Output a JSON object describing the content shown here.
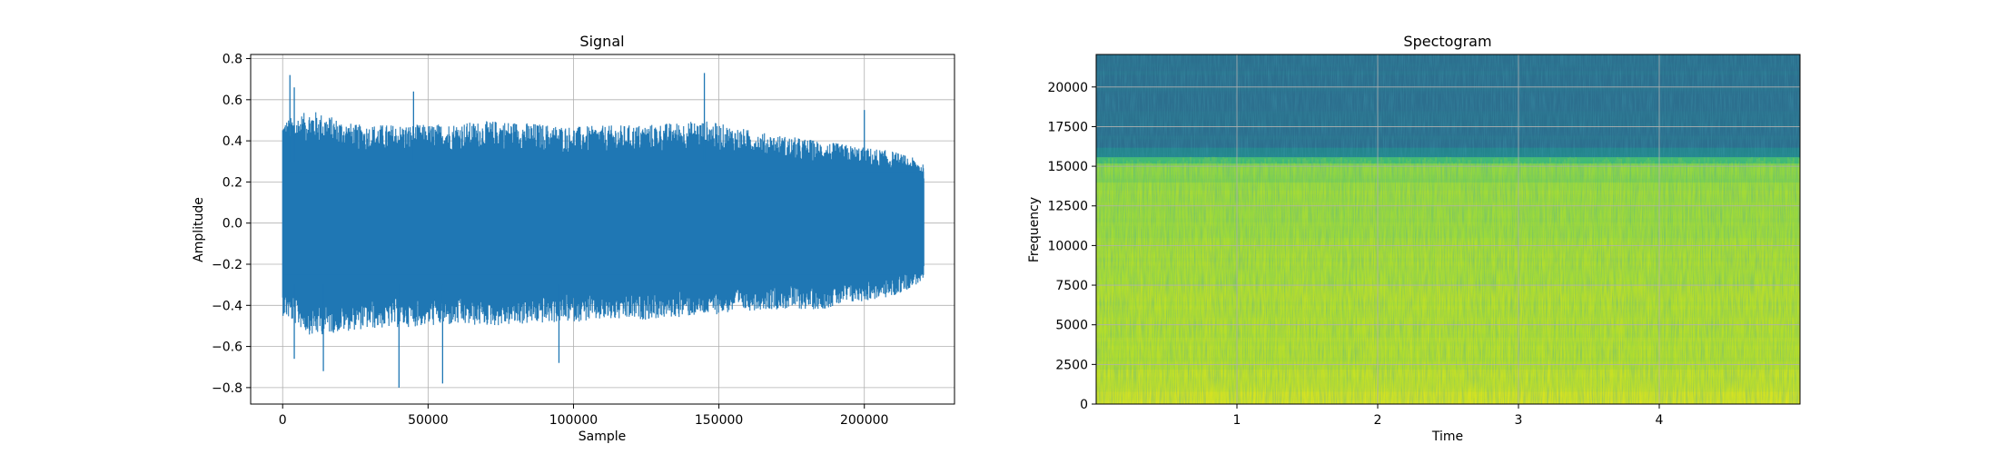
{
  "chart_data": [
    {
      "type": "line",
      "title": "Signal",
      "xlabel": "Sample",
      "ylabel": "Amplitude",
      "xlim": [
        -11000,
        231000
      ],
      "ylim": [
        -0.88,
        0.82
      ],
      "grid": true,
      "line_color": "#1f77b4",
      "x_ticks": [
        0,
        50000,
        100000,
        150000,
        200000
      ],
      "x_tick_labels": [
        "0",
        "50000",
        "100000",
        "150000",
        "200000"
      ],
      "y_ticks": [
        0.8,
        0.6,
        0.4,
        0.2,
        0.0,
        -0.2,
        -0.4,
        -0.6,
        -0.8
      ],
      "y_tick_labels": [
        "0.8",
        "0.6",
        "0.4",
        "0.2",
        "0.0",
        "−0.2",
        "−0.4",
        "−0.6",
        "−0.8"
      ],
      "n_samples": 220500,
      "envelope": {
        "x": [
          0,
          10000,
          25000,
          50000,
          75000,
          100000,
          125000,
          145000,
          165000,
          185000,
          200000,
          210000,
          220500
        ],
        "upper": [
          0.5,
          0.55,
          0.48,
          0.48,
          0.5,
          0.47,
          0.48,
          0.5,
          0.44,
          0.4,
          0.37,
          0.35,
          0.3
        ],
        "lower": [
          -0.45,
          -0.55,
          -0.52,
          -0.5,
          -0.5,
          -0.48,
          -0.47,
          -0.45,
          -0.42,
          -0.42,
          -0.38,
          -0.36,
          -0.28
        ]
      },
      "peaks": [
        {
          "x": 2500,
          "y": 0.72
        },
        {
          "x": 4000,
          "y": 0.66
        },
        {
          "x": 45000,
          "y": 0.64
        },
        {
          "x": 145000,
          "y": 0.73
        },
        {
          "x": 200000,
          "y": 0.55
        }
      ],
      "troughs": [
        {
          "x": 4000,
          "y": -0.66
        },
        {
          "x": 14000,
          "y": -0.72
        },
        {
          "x": 40000,
          "y": -0.8
        },
        {
          "x": 55000,
          "y": -0.78
        },
        {
          "x": 95000,
          "y": -0.68
        }
      ]
    },
    {
      "type": "heatmap",
      "title": "Spectogram",
      "xlabel": "Time",
      "ylabel": "Frequency",
      "xlim": [
        0,
        5.0
      ],
      "ylim": [
        0,
        22050
      ],
      "grid": true,
      "x_ticks": [
        1,
        2,
        3,
        4
      ],
      "x_tick_labels": [
        "1",
        "2",
        "3",
        "4"
      ],
      "y_ticks": [
        0,
        2500,
        5000,
        7500,
        10000,
        12500,
        15000,
        17500,
        20000
      ],
      "y_tick_labels": [
        "0",
        "2500",
        "5000",
        "7500",
        "10000",
        "12500",
        "15000",
        "17500",
        "20000"
      ],
      "colorscale": [
        "#2c6f8e",
        "#20908d",
        "#35b779",
        "#8fd744",
        "#b5de2b",
        "#e4e51d"
      ],
      "cutoff_frequency": 15600,
      "bands": [
        {
          "from": 0,
          "to": 800,
          "level": 0.95
        },
        {
          "from": 800,
          "to": 2200,
          "level": 0.88
        },
        {
          "from": 2200,
          "to": 7500,
          "level": 0.8
        },
        {
          "from": 7500,
          "to": 10500,
          "level": 0.74
        },
        {
          "from": 10500,
          "to": 14000,
          "level": 0.66
        },
        {
          "from": 14000,
          "to": 15200,
          "level": 0.58
        },
        {
          "from": 15200,
          "to": 15600,
          "level": 0.42
        },
        {
          "from": 15600,
          "to": 16200,
          "level": 0.12
        },
        {
          "from": 16200,
          "to": 22050,
          "level": 0.0
        }
      ]
    }
  ]
}
